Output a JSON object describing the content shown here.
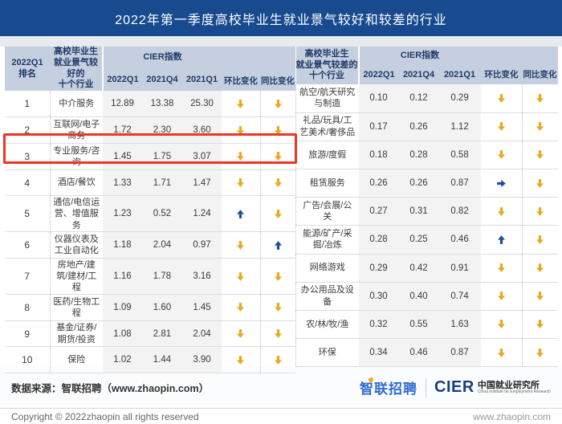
{
  "title": "2022年第一季度高校毕业生就业景气较好和较差的行业",
  "colors": {
    "title_bar": "#174A8F",
    "header_bg": "#C5CFDF",
    "header_text": "#1F3A68",
    "value_col_bg": "#F3F3F4",
    "arrow_down": "#E9A91D",
    "arrow_up": "#1D4F9C",
    "arrow_flat": "#1D4F9C",
    "highlight_box": "#EE3524",
    "zhaopin_blue": "#2E6BD9"
  },
  "table_headers": {
    "rank": "2022Q1\n排名",
    "good_industries": "高校毕业生\n就业景气较好的\n十个行业",
    "bad_industries": "高校毕业生\n就业景气较差的\n十个行业",
    "cier": "CIER指数",
    "periods": [
      "2022Q1",
      "2021Q4",
      "2021Q1"
    ],
    "qoq": "环比变化",
    "yoy": "同比变化"
  },
  "chart_data": [
    {
      "type": "table",
      "title": "高校毕业生就业景气较好的十个行业",
      "columns": [
        "2022Q1排名",
        "行业",
        "CIER指数 2022Q1",
        "CIER指数 2021Q4",
        "CIER指数 2021Q1",
        "环比变化",
        "同比变化"
      ],
      "rows": [
        {
          "rank": "1",
          "industry": "中介服务",
          "values": [
            "12.89",
            "13.38",
            "25.30"
          ],
          "qoq": "down",
          "yoy": "down"
        },
        {
          "rank": "2",
          "industry": "互联网/电子商务",
          "values": [
            "1.72",
            "2.30",
            "3.60"
          ],
          "qoq": "down",
          "yoy": "down"
        },
        {
          "rank": "3",
          "industry": "专业服务/咨询",
          "values": [
            "1.45",
            "1.75",
            "3.07"
          ],
          "qoq": "down",
          "yoy": "down",
          "highlighted": true
        },
        {
          "rank": "4",
          "industry": "酒店/餐饮",
          "values": [
            "1.33",
            "1.71",
            "1.47"
          ],
          "qoq": "down",
          "yoy": "down"
        },
        {
          "rank": "5",
          "industry": "通信/电信运营、增值服务",
          "values": [
            "1.23",
            "0.52",
            "1.24"
          ],
          "qoq": "up",
          "yoy": "down"
        },
        {
          "rank": "6",
          "industry": "仪器仪表及工业自动化",
          "values": [
            "1.18",
            "2.04",
            "0.97"
          ],
          "qoq": "down",
          "yoy": "up"
        },
        {
          "rank": "7",
          "industry": "房地产/建筑/建材/工程",
          "values": [
            "1.16",
            "1.78",
            "3.16"
          ],
          "qoq": "down",
          "yoy": "down"
        },
        {
          "rank": "8",
          "industry": "医药/生物工程",
          "values": [
            "1.09",
            "1.60",
            "1.45"
          ],
          "qoq": "down",
          "yoy": "down"
        },
        {
          "rank": "9",
          "industry": "基金/证券/期货/投资",
          "values": [
            "1.08",
            "2.81",
            "2.04"
          ],
          "qoq": "down",
          "yoy": "down"
        },
        {
          "rank": "10",
          "industry": "保险",
          "values": [
            "1.02",
            "1.44",
            "3.90"
          ],
          "qoq": "down",
          "yoy": "down"
        }
      ]
    },
    {
      "type": "table",
      "title": "高校毕业生就业景气较差的十个行业",
      "columns": [
        "行业",
        "CIER指数 2022Q1",
        "CIER指数 2021Q4",
        "CIER指数 2021Q1",
        "环比变化",
        "同比变化"
      ],
      "rows": [
        {
          "industry": "航空/航天研究与制造",
          "values": [
            "0.10",
            "0.12",
            "0.29"
          ],
          "qoq": "down",
          "yoy": "down"
        },
        {
          "industry": "礼品/玩具/工艺美术/奢侈品",
          "values": [
            "0.17",
            "0.26",
            "1.12"
          ],
          "qoq": "down",
          "yoy": "down"
        },
        {
          "industry": "旅游/度假",
          "values": [
            "0.18",
            "0.28",
            "0.58"
          ],
          "qoq": "down",
          "yoy": "down"
        },
        {
          "industry": "租赁服务",
          "values": [
            "0.26",
            "0.26",
            "0.87"
          ],
          "qoq": "flat",
          "yoy": "down"
        },
        {
          "industry": "广告/会展/公关",
          "values": [
            "0.27",
            "0.31",
            "0.82"
          ],
          "qoq": "down",
          "yoy": "down"
        },
        {
          "industry": "能源/矿产/采掘/冶炼",
          "values": [
            "0.28",
            "0.25",
            "0.46"
          ],
          "qoq": "up",
          "yoy": "down"
        },
        {
          "industry": "网络游戏",
          "values": [
            "0.29",
            "0.42",
            "0.91"
          ],
          "qoq": "down",
          "yoy": "down"
        },
        {
          "industry": "办公用品及设备",
          "values": [
            "0.30",
            "0.40",
            "0.74"
          ],
          "qoq": "down",
          "yoy": "down"
        },
        {
          "industry": "农/林/牧/渔",
          "values": [
            "0.32",
            "0.55",
            "1.63"
          ],
          "qoq": "down",
          "yoy": "down"
        },
        {
          "industry": "环保",
          "values": [
            "0.34",
            "0.46",
            "0.87"
          ],
          "qoq": "down",
          "yoy": "down"
        }
      ]
    }
  ],
  "footer": {
    "source": "数据来源：智联招聘（www.zhaopin.com）",
    "zhaopin_logo": "智联招聘",
    "cier_logo": "CIER",
    "cier_name_cn": "中国就业研究所",
    "cier_name_en": "China Institute for Employment Research",
    "copyright": "Copyright © 2022zhaopin all rights reserved",
    "website": "www.zhaopin.com"
  }
}
